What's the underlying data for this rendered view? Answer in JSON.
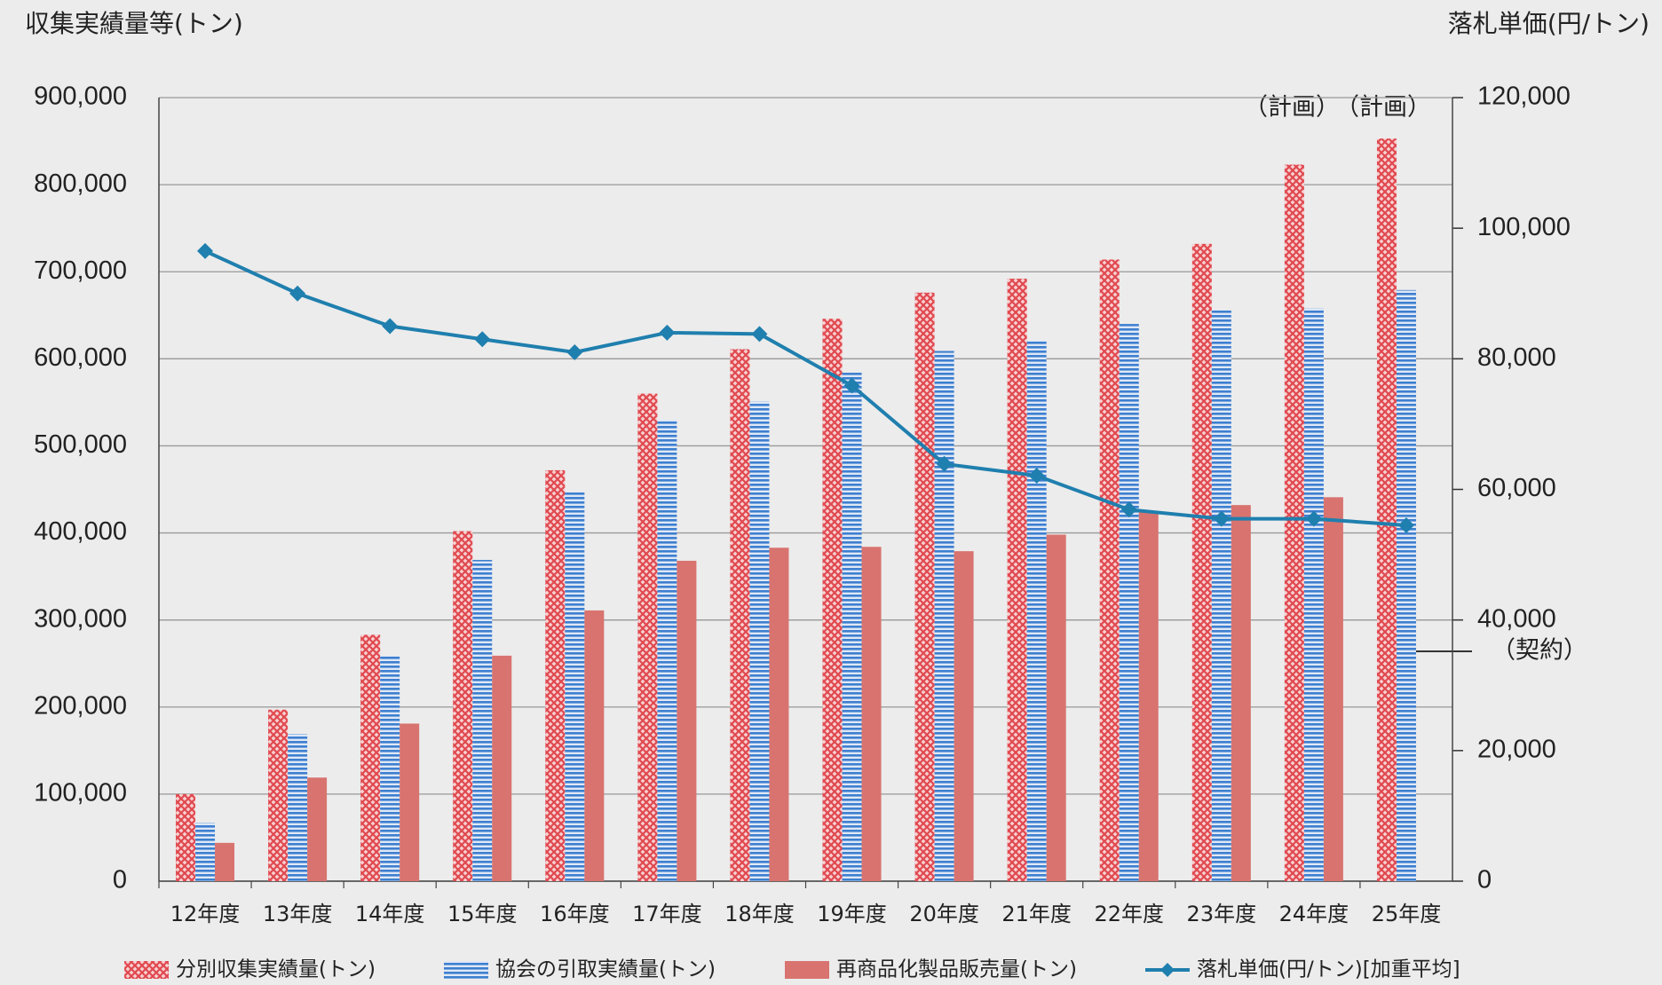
{
  "chart_data": {
    "type": "bar_line",
    "ylabel": "収集実績量等(トン)",
    "y2label": "落札単価(円/トン)",
    "categories": [
      "12年度",
      "13年度",
      "14年度",
      "15年度",
      "16年度",
      "17年度",
      "18年度",
      "19年度",
      "20年度",
      "21年度",
      "22年度",
      "23年度",
      "24年度",
      "25年度"
    ],
    "series": [
      {
        "name": "分別収集実績量(トン)",
        "type": "bar",
        "color": "#e0484f",
        "pattern": "crosshatch",
        "values": [
          100000,
          197000,
          283000,
          402000,
          472000,
          560000,
          611000,
          646000,
          676000,
          692000,
          714000,
          732000,
          823000,
          853000
        ]
      },
      {
        "name": "協会の引取実績量(トン)",
        "type": "bar",
        "color": "#3d7fd0",
        "pattern": "hstripe",
        "values": [
          67000,
          169000,
          259000,
          369000,
          447000,
          530000,
          551000,
          584000,
          609000,
          621000,
          640000,
          656000,
          658000,
          679000
        ]
      },
      {
        "name": "再商品化製品販売量(トン)",
        "type": "bar",
        "color": "#d8736f",
        "pattern": "solid",
        "values": [
          44000,
          119000,
          181000,
          259000,
          311000,
          368000,
          383000,
          384000,
          379000,
          398000,
          424000,
          432000,
          441000,
          null
        ]
      },
      {
        "name": "落札単価(円/トン)[加重平均]",
        "type": "line",
        "axis": "y2",
        "color": "#1f7fae",
        "values": [
          96500,
          90000,
          85000,
          83000,
          81000,
          84000,
          83800,
          75900,
          63900,
          62100,
          56900,
          55500,
          55500,
          54500
        ]
      }
    ],
    "annotations": [
      "（計画）",
      "（計画）",
      "（契約）"
    ],
    "ylim": [
      0,
      900000
    ],
    "yticks": [
      0,
      {
        "value": 100000,
        "label": "100,000"
      },
      {
        "value": 200000,
        "label": "200,000"
      },
      {
        "value": 300000,
        "label": "300,000"
      },
      {
        "value": 400000,
        "label": "400,000"
      },
      {
        "value": 500000,
        "label": "500,000"
      },
      {
        "value": 600000,
        "label": "600,000"
      },
      {
        "value": 700000,
        "label": "700,000"
      },
      {
        "value": 800000,
        "label": "800,000"
      },
      {
        "value": 900000,
        "label": "900,000"
      }
    ],
    "y2lim": [
      0,
      120000
    ],
    "y2ticks": [
      0,
      {
        "value": 20000,
        "label": "20,000"
      },
      {
        "value": 40000,
        "label": "40,000"
      },
      {
        "value": 60000,
        "label": "60,000"
      },
      {
        "value": 80000,
        "label": "80,000"
      },
      {
        "value": 100000,
        "label": "100,000"
      },
      {
        "value": 120000,
        "label": "120,000"
      }
    ],
    "grid": true,
    "legend": "bottom"
  }
}
